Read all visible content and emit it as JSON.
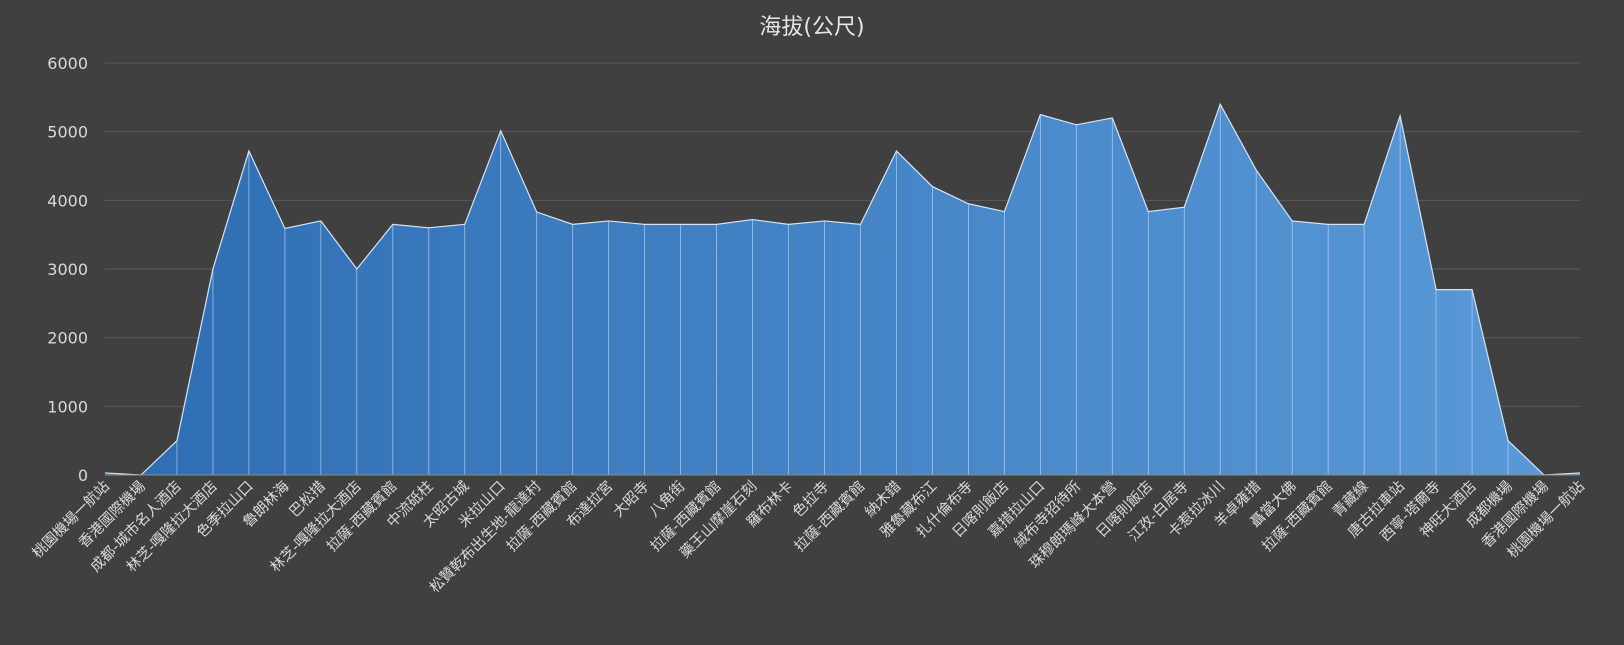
{
  "chart_data": {
    "type": "area",
    "title": "海拔(公尺)",
    "xlabel": "",
    "ylabel": "",
    "ylim": [
      0,
      6000
    ],
    "yticks": [
      0,
      1000,
      2000,
      3000,
      4000,
      5000,
      6000
    ],
    "grid": true,
    "legend": "none",
    "colors": {
      "fill_start": "#2e6db3",
      "fill_end": "#5b9ad8",
      "background": "#404040",
      "grid": "#5a5a5a",
      "text": "#d9d9d9"
    },
    "categories": [
      "桃園機場一航站",
      "香港國際機場",
      "成都-城市名人酒店",
      "林芝-嘎隆拉大酒店",
      "色季拉山口",
      "魯朗林海",
      "巴松措",
      "林芝-嘎隆拉大酒店",
      "拉薩-西藏賓館",
      "中流砥柱",
      "太昭古城",
      "米拉山口",
      "松贊乾布出生地-龍達村",
      "拉薩-西藏賓館",
      "布達拉宮",
      "大昭寺",
      "八角街",
      "拉薩-西藏賓館",
      "藥王山摩崖石刻",
      "羅布林卡",
      "色拉寺",
      "拉薩-西藏賓館",
      "納木錯",
      "雅魯藏布江",
      "扎什倫布寺",
      "日喀則飯店",
      "嘉措拉山口",
      "絨布寺招待所",
      "珠穆朗瑪峰大本營",
      "日喀則飯店",
      "江孜-白居寺",
      "卡惹拉冰川",
      "羊卓雍措",
      "聶當大佛",
      "拉薩-西藏賓館",
      "青藏線",
      "唐古拉車站",
      "西寧-塔爾寺",
      "神旺大酒店",
      "成都機場",
      "香港國際機場",
      "桃園機場一航站"
    ],
    "series": [
      {
        "values": [
          30,
          0,
          500,
          3000,
          4720,
          3590,
          3700,
          3000,
          3650,
          3600,
          3650,
          5013,
          3830,
          3650,
          3700,
          3650,
          3650,
          3650,
          3720,
          3650,
          3700,
          3650,
          4718,
          4200,
          3950,
          3836,
          5248,
          5100,
          5200,
          3836,
          3900,
          5400,
          4441,
          3700,
          3650,
          3650,
          5231,
          2700,
          2700,
          500,
          0,
          30
        ]
      }
    ]
  }
}
